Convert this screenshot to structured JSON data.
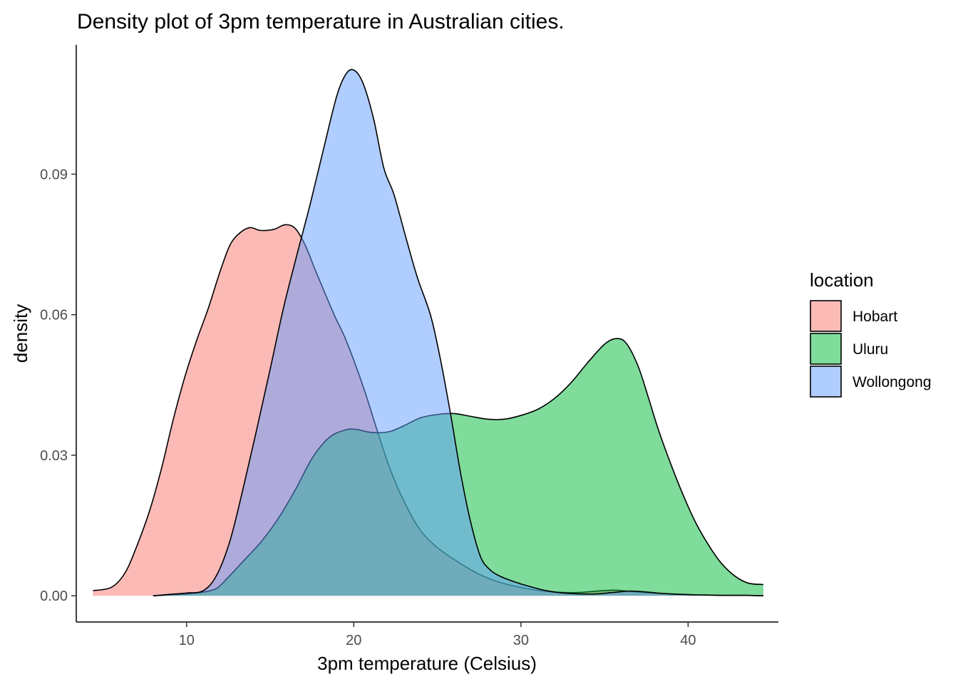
{
  "chart_data": {
    "type": "area",
    "title": "Density plot of 3pm temperature in Australian cities.",
    "xlabel": "3pm temperature (Celsius)",
    "ylabel": "density",
    "xlim": [
      3.4,
      45.4
    ],
    "ylim": [
      -0.0056,
      0.1176
    ],
    "x_ticks": [
      10,
      20,
      30,
      40
    ],
    "x_tick_labels": [
      "10",
      "20",
      "30",
      "40"
    ],
    "y_ticks": [
      0.0,
      0.03,
      0.06,
      0.09
    ],
    "y_tick_labels": [
      "0.00",
      "0.03",
      "0.06",
      "0.09"
    ],
    "grid": false,
    "fill_opacity": 0.5,
    "legend": {
      "title": "location",
      "position": "right"
    },
    "series": [
      {
        "name": "Hobart",
        "color": "#F8766D",
        "x": [
          4.4,
          5.5,
          6.3,
          7.0,
          7.8,
          8.5,
          9.2,
          9.9,
          10.6,
          11.3,
          12.0,
          12.6,
          13.2,
          13.8,
          14.4,
          15.2,
          15.9,
          16.5,
          17.1,
          17.7,
          18.3,
          18.9,
          19.4,
          20.0,
          20.7,
          21.4,
          22.2,
          23.1,
          24.0,
          25.0,
          26.2,
          27.5,
          28.8,
          30.1,
          31.4,
          32.5,
          33.5,
          34.6,
          35.6,
          36.6,
          37.8,
          39.0,
          40.5,
          42.0,
          43.5,
          44.5
        ],
        "y": [
          0.0011,
          0.0018,
          0.0048,
          0.0104,
          0.0183,
          0.0272,
          0.0376,
          0.0468,
          0.0545,
          0.0614,
          0.0692,
          0.0749,
          0.0775,
          0.0786,
          0.078,
          0.0782,
          0.0792,
          0.0784,
          0.0748,
          0.0695,
          0.0644,
          0.0594,
          0.0557,
          0.0503,
          0.0432,
          0.0353,
          0.0268,
          0.0195,
          0.0139,
          0.0103,
          0.0073,
          0.0046,
          0.0028,
          0.0017,
          0.001,
          0.0007,
          0.0007,
          0.001,
          0.0012,
          0.0009,
          0.0006,
          0.0004,
          0.0002,
          0.0001,
          0.0001,
          0.0
        ],
        "label": "Hobart"
      },
      {
        "name": "Uluru",
        "color": "#00BA38",
        "x": [
          8.0,
          9.0,
          10.0,
          11.0,
          11.8,
          12.5,
          13.5,
          14.5,
          15.5,
          16.5,
          17.5,
          18.5,
          19.5,
          20.2,
          20.8,
          21.5,
          22.2,
          23.0,
          24.0,
          25.0,
          26.0,
          27.0,
          28.0,
          29.0,
          30.0,
          31.0,
          32.0,
          33.0,
          34.0,
          35.0,
          35.7,
          36.3,
          37.0,
          37.6,
          38.2,
          39.0,
          39.8,
          40.5,
          41.3,
          42.0,
          42.8,
          43.6,
          44.5
        ],
        "y": [
          0.0,
          0.0002,
          0.0004,
          0.0008,
          0.0016,
          0.004,
          0.0078,
          0.0117,
          0.0166,
          0.0226,
          0.0293,
          0.0337,
          0.0354,
          0.0355,
          0.035,
          0.0348,
          0.0351,
          0.0363,
          0.038,
          0.0387,
          0.0389,
          0.0383,
          0.0377,
          0.0377,
          0.0385,
          0.0398,
          0.0421,
          0.0455,
          0.0498,
          0.0537,
          0.0549,
          0.0539,
          0.0491,
          0.0426,
          0.0357,
          0.0278,
          0.0207,
          0.0153,
          0.0104,
          0.0069,
          0.0042,
          0.0027,
          0.0024
        ],
        "label": "Uluru"
      },
      {
        "name": "Wollongong",
        "color": "#619CFF",
        "x": [
          8.0,
          9.0,
          10.0,
          11.0,
          11.8,
          12.6,
          13.4,
          14.2,
          15.0,
          15.8,
          16.6,
          17.4,
          18.2,
          19.0,
          19.6,
          20.1,
          20.6,
          21.2,
          21.8,
          22.4,
          23.1,
          23.8,
          24.6,
          25.2,
          25.8,
          26.4,
          27.0,
          27.6,
          28.2,
          28.8,
          29.6,
          30.5,
          31.5,
          32.5,
          33.5,
          34.5,
          35.5,
          36.5,
          37.5,
          38.5,
          39.5,
          40.5,
          42.0,
          43.5,
          44.5
        ],
        "y": [
          0.0,
          0.0003,
          0.0006,
          0.0011,
          0.0044,
          0.0118,
          0.0232,
          0.0356,
          0.0484,
          0.0615,
          0.0728,
          0.0837,
          0.0955,
          0.1069,
          0.1117,
          0.112,
          0.109,
          0.1016,
          0.0913,
          0.0857,
          0.0767,
          0.068,
          0.0598,
          0.0502,
          0.0386,
          0.026,
          0.0156,
          0.0082,
          0.0054,
          0.0041,
          0.003,
          0.002,
          0.0011,
          0.0006,
          0.0004,
          0.0004,
          0.0007,
          0.001,
          0.0008,
          0.0005,
          0.0003,
          0.0002,
          0.0001,
          0.0001,
          0.0
        ],
        "label": "Wollongong"
      }
    ]
  }
}
